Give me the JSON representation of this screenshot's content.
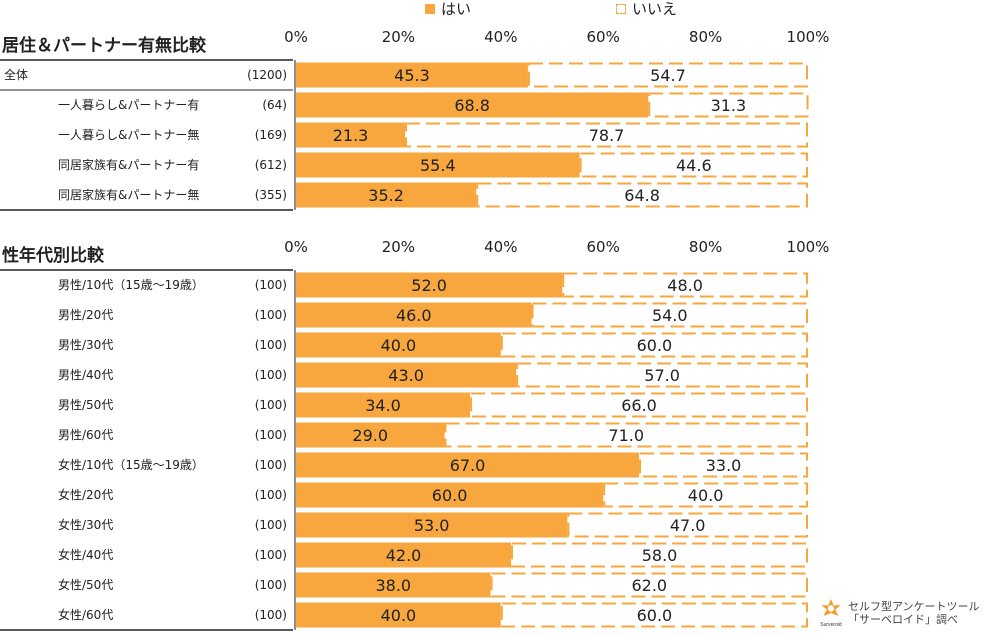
{
  "colors": {
    "yes": "#F7A73E",
    "no_stroke": "#F7A73E",
    "text": "#222222"
  },
  "legend": {
    "yes_label": "はい",
    "no_label": "いいえ"
  },
  "watermark": {
    "line1": "セルフ型アンケートツール",
    "line2": "「サーベロイド」調べ",
    "logo_text": "Surveroid"
  },
  "chart_data": [
    {
      "type": "bar",
      "orientation": "horizontal-stacked-100",
      "title": "居住＆パートナー有無比較",
      "xticks": [
        "0%",
        "20%",
        "40%",
        "60%",
        "80%",
        "100%"
      ],
      "xlim": [
        0,
        100
      ],
      "series_names": [
        "はい",
        "いいえ"
      ],
      "rows": [
        {
          "label": "全体",
          "n": "(1200)",
          "yes": 45.3,
          "no": 54.7,
          "yes_text": "45.3",
          "no_text": "54.7",
          "indent": false
        },
        {
          "label": "一人暮らし&パートナー有",
          "n": "(64)",
          "yes": 68.8,
          "no": 31.3,
          "yes_text": "68.8",
          "no_text": "31.3",
          "indent": true
        },
        {
          "label": "一人暮らし&パートナー無",
          "n": "(169)",
          "yes": 21.3,
          "no": 78.7,
          "yes_text": "21.3",
          "no_text": "78.7",
          "indent": true
        },
        {
          "label": "同居家族有&パートナー有",
          "n": "(612)",
          "yes": 55.4,
          "no": 44.6,
          "yes_text": "55.4",
          "no_text": "44.6",
          "indent": true
        },
        {
          "label": "同居家族有&パートナー無",
          "n": "(355)",
          "yes": 35.2,
          "no": 64.8,
          "yes_text": "35.2",
          "no_text": "64.8",
          "indent": true
        }
      ]
    },
    {
      "type": "bar",
      "orientation": "horizontal-stacked-100",
      "title": "性年代別比較",
      "xticks": [
        "0%",
        "20%",
        "40%",
        "60%",
        "80%",
        "100%"
      ],
      "xlim": [
        0,
        100
      ],
      "series_names": [
        "はい",
        "いいえ"
      ],
      "rows": [
        {
          "label": "男性/10代（15歳～19歳）",
          "n": "(100)",
          "yes": 52.0,
          "no": 48.0,
          "yes_text": "52.0",
          "no_text": "48.0",
          "indent": true
        },
        {
          "label": "男性/20代",
          "n": "(100)",
          "yes": 46.0,
          "no": 54.0,
          "yes_text": "46.0",
          "no_text": "54.0",
          "indent": true
        },
        {
          "label": "男性/30代",
          "n": "(100)",
          "yes": 40.0,
          "no": 60.0,
          "yes_text": "40.0",
          "no_text": "60.0",
          "indent": true
        },
        {
          "label": "男性/40代",
          "n": "(100)",
          "yes": 43.0,
          "no": 57.0,
          "yes_text": "43.0",
          "no_text": "57.0",
          "indent": true
        },
        {
          "label": "男性/50代",
          "n": "(100)",
          "yes": 34.0,
          "no": 66.0,
          "yes_text": "34.0",
          "no_text": "66.0",
          "indent": true
        },
        {
          "label": "男性/60代",
          "n": "(100)",
          "yes": 29.0,
          "no": 71.0,
          "yes_text": "29.0",
          "no_text": "71.0",
          "indent": true
        },
        {
          "label": "女性/10代（15歳～19歳）",
          "n": "(100)",
          "yes": 67.0,
          "no": 33.0,
          "yes_text": "67.0",
          "no_text": "33.0",
          "indent": true
        },
        {
          "label": "女性/20代",
          "n": "(100)",
          "yes": 60.0,
          "no": 40.0,
          "yes_text": "60.0",
          "no_text": "40.0",
          "indent": true
        },
        {
          "label": "女性/30代",
          "n": "(100)",
          "yes": 53.0,
          "no": 47.0,
          "yes_text": "53.0",
          "no_text": "47.0",
          "indent": true
        },
        {
          "label": "女性/40代",
          "n": "(100)",
          "yes": 42.0,
          "no": 58.0,
          "yes_text": "42.0",
          "no_text": "58.0",
          "indent": true
        },
        {
          "label": "女性/50代",
          "n": "(100)",
          "yes": 38.0,
          "no": 62.0,
          "yes_text": "38.0",
          "no_text": "62.0",
          "indent": true
        },
        {
          "label": "女性/60代",
          "n": "(100)",
          "yes": 40.0,
          "no": 60.0,
          "yes_text": "40.0",
          "no_text": "60.0",
          "indent": true
        }
      ]
    }
  ]
}
